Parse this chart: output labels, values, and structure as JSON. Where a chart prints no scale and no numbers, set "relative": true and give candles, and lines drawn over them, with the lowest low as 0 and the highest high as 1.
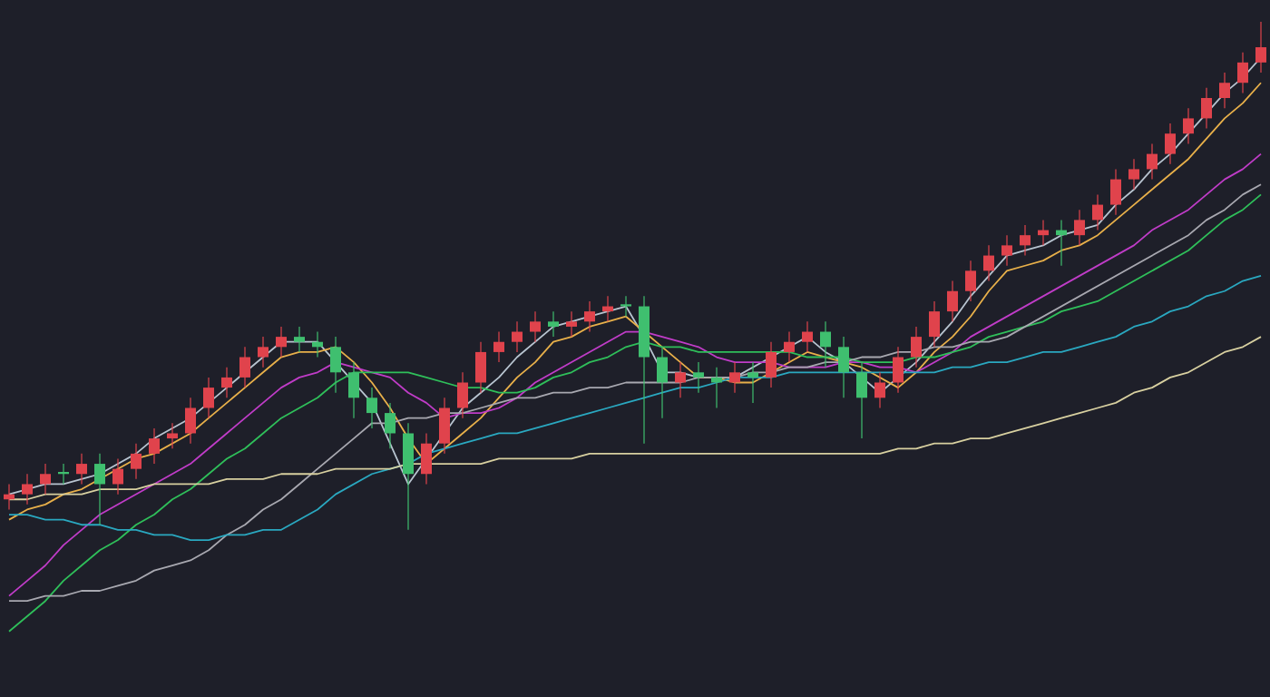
{
  "chart_data": {
    "type": "candlestick",
    "relative": true,
    "categories": [
      null,
      null,
      null,
      null,
      null,
      null,
      null,
      null,
      null,
      null,
      null,
      null,
      null,
      null,
      null,
      null,
      null,
      null,
      null,
      null,
      null,
      null,
      null,
      null,
      null,
      null,
      null,
      null,
      null,
      null,
      null,
      null,
      null,
      null,
      null,
      null,
      null,
      null,
      null,
      null,
      null,
      null,
      null,
      null,
      null,
      null,
      null,
      null,
      null,
      null,
      null,
      null,
      null,
      null,
      null,
      null,
      null,
      null,
      null,
      null,
      null,
      null,
      null,
      null,
      null,
      null,
      null,
      null,
      null,
      null
    ],
    "ohlc": [
      [
        0.06,
        0.09,
        0.04,
        0.07
      ],
      [
        0.07,
        0.11,
        0.05,
        0.09
      ],
      [
        0.09,
        0.13,
        0.07,
        0.11
      ],
      [
        0.11,
        0.13,
        0.09,
        0.11
      ],
      [
        0.11,
        0.15,
        0.09,
        0.13
      ],
      [
        0.13,
        0.15,
        0.01,
        0.09
      ],
      [
        0.09,
        0.14,
        0.07,
        0.12
      ],
      [
        0.12,
        0.17,
        0.1,
        0.15
      ],
      [
        0.15,
        0.2,
        0.13,
        0.18
      ],
      [
        0.18,
        0.21,
        0.16,
        0.19
      ],
      [
        0.19,
        0.26,
        0.17,
        0.24
      ],
      [
        0.24,
        0.3,
        0.22,
        0.28
      ],
      [
        0.28,
        0.32,
        0.26,
        0.3
      ],
      [
        0.3,
        0.36,
        0.28,
        0.34
      ],
      [
        0.34,
        0.38,
        0.32,
        0.36
      ],
      [
        0.36,
        0.4,
        0.34,
        0.38
      ],
      [
        0.38,
        0.4,
        0.35,
        0.37
      ],
      [
        0.37,
        0.39,
        0.34,
        0.36
      ],
      [
        0.36,
        0.38,
        0.27,
        0.31
      ],
      [
        0.31,
        0.33,
        0.22,
        0.26
      ],
      [
        0.26,
        0.28,
        0.2,
        0.23
      ],
      [
        0.23,
        0.25,
        0.16,
        0.19
      ],
      [
        0.19,
        0.21,
        0.0,
        0.11
      ],
      [
        0.11,
        0.19,
        0.09,
        0.17
      ],
      [
        0.17,
        0.26,
        0.15,
        0.24
      ],
      [
        0.24,
        0.31,
        0.22,
        0.29
      ],
      [
        0.29,
        0.37,
        0.27,
        0.35
      ],
      [
        0.35,
        0.39,
        0.33,
        0.37
      ],
      [
        0.37,
        0.41,
        0.35,
        0.39
      ],
      [
        0.39,
        0.43,
        0.37,
        0.41
      ],
      [
        0.41,
        0.43,
        0.38,
        0.4
      ],
      [
        0.4,
        0.43,
        0.38,
        0.41
      ],
      [
        0.41,
        0.45,
        0.39,
        0.43
      ],
      [
        0.43,
        0.46,
        0.41,
        0.44
      ],
      [
        0.44,
        0.46,
        0.42,
        0.44
      ],
      [
        0.44,
        0.46,
        0.17,
        0.34
      ],
      [
        0.34,
        0.36,
        0.22,
        0.29
      ],
      [
        0.29,
        0.33,
        0.26,
        0.31
      ],
      [
        0.31,
        0.33,
        0.27,
        0.3
      ],
      [
        0.3,
        0.32,
        0.24,
        0.29
      ],
      [
        0.29,
        0.33,
        0.27,
        0.31
      ],
      [
        0.31,
        0.33,
        0.25,
        0.3
      ],
      [
        0.3,
        0.37,
        0.28,
        0.35
      ],
      [
        0.35,
        0.39,
        0.33,
        0.37
      ],
      [
        0.37,
        0.41,
        0.35,
        0.39
      ],
      [
        0.39,
        0.41,
        0.32,
        0.36
      ],
      [
        0.36,
        0.38,
        0.26,
        0.31
      ],
      [
        0.31,
        0.33,
        0.18,
        0.26
      ],
      [
        0.26,
        0.31,
        0.24,
        0.29
      ],
      [
        0.29,
        0.36,
        0.27,
        0.34
      ],
      [
        0.34,
        0.4,
        0.32,
        0.38
      ],
      [
        0.38,
        0.45,
        0.36,
        0.43
      ],
      [
        0.43,
        0.49,
        0.41,
        0.47
      ],
      [
        0.47,
        0.53,
        0.45,
        0.51
      ],
      [
        0.51,
        0.56,
        0.49,
        0.54
      ],
      [
        0.54,
        0.58,
        0.52,
        0.56
      ],
      [
        0.56,
        0.6,
        0.54,
        0.58
      ],
      [
        0.58,
        0.61,
        0.56,
        0.59
      ],
      [
        0.59,
        0.61,
        0.52,
        0.58
      ],
      [
        0.58,
        0.63,
        0.56,
        0.61
      ],
      [
        0.61,
        0.66,
        0.59,
        0.64
      ],
      [
        0.64,
        0.71,
        0.62,
        0.69
      ],
      [
        0.69,
        0.73,
        0.67,
        0.71
      ],
      [
        0.71,
        0.76,
        0.69,
        0.74
      ],
      [
        0.74,
        0.8,
        0.72,
        0.78
      ],
      [
        0.78,
        0.83,
        0.76,
        0.81
      ],
      [
        0.81,
        0.87,
        0.79,
        0.85
      ],
      [
        0.85,
        0.9,
        0.83,
        0.88
      ],
      [
        0.88,
        0.94,
        0.86,
        0.92
      ],
      [
        0.92,
        1.0,
        0.9,
        0.95
      ]
    ],
    "colors": [
      "#e0434c",
      "#e0434c",
      "#e0434c",
      "#3fbf6f",
      "#e0434c",
      "#3fbf6f",
      "#e0434c",
      "#e0434c",
      "#e0434c",
      "#e0434c",
      "#e0434c",
      "#e0434c",
      "#e0434c",
      "#e0434c",
      "#e0434c",
      "#e0434c",
      "#3fbf6f",
      "#3fbf6f",
      "#3fbf6f",
      "#3fbf6f",
      "#3fbf6f",
      "#3fbf6f",
      "#3fbf6f",
      "#e0434c",
      "#e0434c",
      "#e0434c",
      "#e0434c",
      "#e0434c",
      "#e0434c",
      "#e0434c",
      "#3fbf6f",
      "#e0434c",
      "#e0434c",
      "#e0434c",
      "#3fbf6f",
      "#3fbf6f",
      "#3fbf6f",
      "#e0434c",
      "#3fbf6f",
      "#3fbf6f",
      "#e0434c",
      "#3fbf6f",
      "#e0434c",
      "#e0434c",
      "#e0434c",
      "#3fbf6f",
      "#3fbf6f",
      "#3fbf6f",
      "#e0434c",
      "#e0434c",
      "#e0434c",
      "#e0434c",
      "#e0434c",
      "#e0434c",
      "#e0434c",
      "#e0434c",
      "#e0434c",
      "#e0434c",
      "#3fbf6f",
      "#e0434c",
      "#e0434c",
      "#e0434c",
      "#e0434c",
      "#e0434c",
      "#e0434c",
      "#e0434c",
      "#e0434c",
      "#e0434c",
      "#e0434c",
      "#e0434c"
    ],
    "series": [
      {
        "type": "line",
        "color": "#b8c4d0",
        "values": [
          0.07,
          0.08,
          0.09,
          0.09,
          0.1,
          0.11,
          0.13,
          0.15,
          0.18,
          0.2,
          0.22,
          0.25,
          0.28,
          0.31,
          0.34,
          0.37,
          0.37,
          0.37,
          0.33,
          0.29,
          0.25,
          0.17,
          0.09,
          0.14,
          0.19,
          0.24,
          0.27,
          0.3,
          0.34,
          0.37,
          0.4,
          0.41,
          0.42,
          0.43,
          0.44,
          0.38,
          0.31,
          0.31,
          0.3,
          0.3,
          0.3,
          0.32,
          0.34,
          0.36,
          0.38,
          0.35,
          0.33,
          0.3,
          0.27,
          0.3,
          0.33,
          0.37,
          0.41,
          0.46,
          0.5,
          0.54,
          0.55,
          0.56,
          0.58,
          0.59,
          0.6,
          0.64,
          0.67,
          0.71,
          0.74,
          0.78,
          0.82,
          0.86,
          0.89,
          0.93
        ]
      },
      {
        "type": "line",
        "color": "#e8b04a",
        "values": [
          0.02,
          0.04,
          0.05,
          0.07,
          0.08,
          0.1,
          0.12,
          0.14,
          0.15,
          0.17,
          0.19,
          0.22,
          0.25,
          0.28,
          0.31,
          0.34,
          0.35,
          0.35,
          0.36,
          0.33,
          0.29,
          0.24,
          0.18,
          0.13,
          0.16,
          0.19,
          0.22,
          0.26,
          0.3,
          0.33,
          0.37,
          0.38,
          0.4,
          0.41,
          0.42,
          0.39,
          0.36,
          0.33,
          0.3,
          0.3,
          0.29,
          0.29,
          0.31,
          0.33,
          0.35,
          0.34,
          0.33,
          0.32,
          0.3,
          0.28,
          0.31,
          0.35,
          0.38,
          0.42,
          0.47,
          0.51,
          0.52,
          0.53,
          0.55,
          0.56,
          0.58,
          0.61,
          0.64,
          0.67,
          0.7,
          0.73,
          0.77,
          0.81,
          0.84,
          0.88
        ]
      },
      {
        "type": "line",
        "color": "#c03cc8",
        "values": [
          -0.13,
          -0.1,
          -0.07,
          -0.03,
          0.0,
          0.03,
          0.05,
          0.07,
          0.09,
          0.11,
          0.13,
          0.16,
          0.19,
          0.22,
          0.25,
          0.28,
          0.3,
          0.31,
          0.33,
          0.32,
          0.31,
          0.3,
          0.27,
          0.25,
          0.22,
          0.23,
          0.23,
          0.24,
          0.26,
          0.29,
          0.31,
          0.33,
          0.35,
          0.37,
          0.39,
          0.39,
          0.38,
          0.37,
          0.36,
          0.34,
          0.33,
          0.33,
          0.33,
          0.32,
          0.32,
          0.32,
          0.33,
          0.33,
          0.32,
          0.32,
          0.31,
          0.33,
          0.35,
          0.38,
          0.4,
          0.42,
          0.44,
          0.46,
          0.48,
          0.5,
          0.52,
          0.54,
          0.56,
          0.59,
          0.61,
          0.63,
          0.66,
          0.69,
          0.71,
          0.74
        ]
      },
      {
        "type": "line",
        "color": "#2fbf5a",
        "values": [
          -0.2,
          -0.17,
          -0.14,
          -0.1,
          -0.07,
          -0.04,
          -0.02,
          0.01,
          0.03,
          0.06,
          0.08,
          0.11,
          0.14,
          0.16,
          0.19,
          0.22,
          0.24,
          0.26,
          0.29,
          0.31,
          0.31,
          0.31,
          0.31,
          0.3,
          0.29,
          0.28,
          0.28,
          0.27,
          0.27,
          0.28,
          0.3,
          0.31,
          0.33,
          0.34,
          0.36,
          0.37,
          0.36,
          0.36,
          0.35,
          0.35,
          0.35,
          0.35,
          0.35,
          0.35,
          0.34,
          0.34,
          0.34,
          0.33,
          0.33,
          0.33,
          0.34,
          0.34,
          0.35,
          0.36,
          0.38,
          0.39,
          0.4,
          0.41,
          0.43,
          0.44,
          0.45,
          0.47,
          0.49,
          0.51,
          0.53,
          0.55,
          0.58,
          0.61,
          0.63,
          0.66
        ]
      },
      {
        "type": "line",
        "color": "#a8a8b0",
        "values": [
          -0.14,
          -0.14,
          -0.13,
          -0.13,
          -0.12,
          -0.12,
          -0.11,
          -0.1,
          -0.08,
          -0.07,
          -0.06,
          -0.04,
          -0.01,
          0.01,
          0.04,
          0.06,
          0.09,
          0.12,
          0.15,
          0.18,
          0.21,
          0.21,
          0.22,
          0.22,
          0.23,
          0.23,
          0.24,
          0.25,
          0.26,
          0.26,
          0.27,
          0.27,
          0.28,
          0.28,
          0.29,
          0.29,
          0.29,
          0.29,
          0.3,
          0.3,
          0.3,
          0.31,
          0.31,
          0.32,
          0.32,
          0.33,
          0.33,
          0.34,
          0.34,
          0.35,
          0.35,
          0.36,
          0.36,
          0.37,
          0.37,
          0.38,
          0.4,
          0.42,
          0.44,
          0.46,
          0.48,
          0.5,
          0.52,
          0.54,
          0.56,
          0.58,
          0.61,
          0.63,
          0.66,
          0.68
        ]
      },
      {
        "type": "line",
        "color": "#2aa8c0",
        "values": [
          0.03,
          0.03,
          0.02,
          0.02,
          0.01,
          0.01,
          0.0,
          0.0,
          -0.01,
          -0.01,
          -0.02,
          -0.02,
          -0.01,
          -0.01,
          0.0,
          0.0,
          0.02,
          0.04,
          0.07,
          0.09,
          0.11,
          0.12,
          0.13,
          0.15,
          0.16,
          0.17,
          0.18,
          0.19,
          0.19,
          0.2,
          0.21,
          0.22,
          0.23,
          0.24,
          0.25,
          0.26,
          0.27,
          0.28,
          0.28,
          0.29,
          0.3,
          0.3,
          0.3,
          0.31,
          0.31,
          0.31,
          0.31,
          0.31,
          0.31,
          0.31,
          0.31,
          0.31,
          0.32,
          0.32,
          0.33,
          0.33,
          0.34,
          0.35,
          0.35,
          0.36,
          0.37,
          0.38,
          0.4,
          0.41,
          0.43,
          0.44,
          0.46,
          0.47,
          0.49,
          0.5
        ]
      },
      {
        "type": "line",
        "color": "#d8d0a0",
        "values": [
          0.06,
          0.06,
          0.07,
          0.07,
          0.07,
          0.08,
          0.08,
          0.08,
          0.09,
          0.09,
          0.09,
          0.09,
          0.1,
          0.1,
          0.1,
          0.11,
          0.11,
          0.11,
          0.12,
          0.12,
          0.12,
          0.12,
          0.13,
          0.13,
          0.13,
          0.13,
          0.13,
          0.14,
          0.14,
          0.14,
          0.14,
          0.14,
          0.15,
          0.15,
          0.15,
          0.15,
          0.15,
          0.15,
          0.15,
          0.15,
          0.15,
          0.15,
          0.15,
          0.15,
          0.15,
          0.15,
          0.15,
          0.15,
          0.15,
          0.16,
          0.16,
          0.17,
          0.17,
          0.18,
          0.18,
          0.19,
          0.2,
          0.21,
          0.22,
          0.23,
          0.24,
          0.25,
          0.27,
          0.28,
          0.3,
          0.31,
          0.33,
          0.35,
          0.36,
          0.38
        ]
      }
    ]
  }
}
